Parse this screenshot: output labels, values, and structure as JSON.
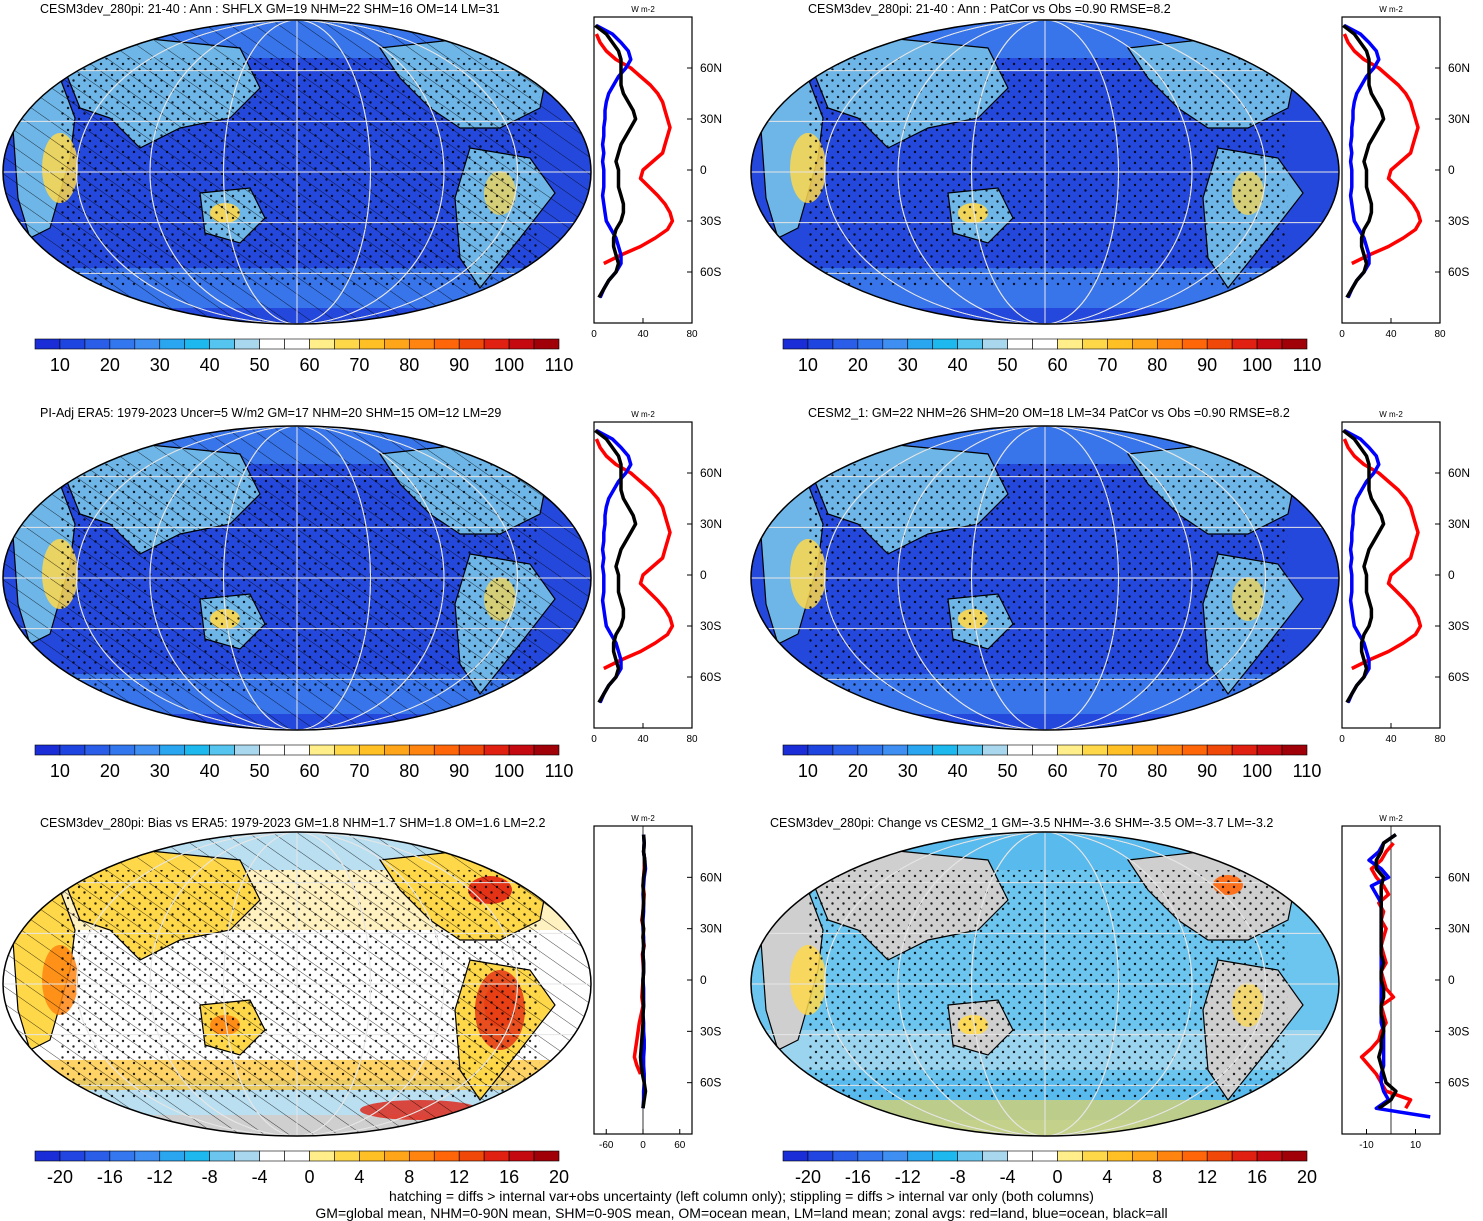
{
  "panels": [
    {
      "title": "CESM3dev_280pi: 21-40 : Ann : SHFLX GM=19 NHM=22 SHM=16 OM=14 LM=31",
      "map": {
        "field": "absolute",
        "hatching": true,
        "stippling": true
      },
      "colorbar": {
        "labels": [
          "10",
          "20",
          "30",
          "40",
          "50",
          "60",
          "70",
          "80",
          "90",
          "100",
          "110"
        ]
      },
      "zonal": {
        "unit": "W m-2",
        "xticks": [
          "0",
          "40",
          "80"
        ],
        "xmin": 0,
        "xmax": 80,
        "lat_ticks": [
          "60N",
          "30N",
          "0",
          "30S",
          "60S"
        ]
      }
    },
    {
      "title": "CESM3dev_280pi: 21-40 : Ann : PatCor vs Obs =0.90 RMSE=8.2",
      "map": {
        "field": "absolute",
        "hatching": false,
        "stippling": true
      },
      "colorbar": {
        "labels": [
          "10",
          "20",
          "30",
          "40",
          "50",
          "60",
          "70",
          "80",
          "90",
          "100",
          "110"
        ]
      },
      "zonal": {
        "unit": "W m-2",
        "xticks": [
          "0",
          "40",
          "80"
        ],
        "xmin": 0,
        "xmax": 80,
        "lat_ticks": [
          "60N",
          "30N",
          "0",
          "30S",
          "60S"
        ]
      }
    },
    {
      "title": "PI-Adj ERA5: 1979-2023 Uncer=5 W/m2 GM=17 NHM=20 SHM=15 OM=12 LM=29",
      "map": {
        "field": "absolute",
        "hatching": true,
        "stippling": true
      },
      "colorbar": {
        "labels": [
          "10",
          "20",
          "30",
          "40",
          "50",
          "60",
          "70",
          "80",
          "90",
          "100",
          "110"
        ]
      },
      "zonal": {
        "unit": "W m-2",
        "xticks": [
          "0",
          "40",
          "80"
        ],
        "xmin": 0,
        "xmax": 80,
        "lat_ticks": [
          "60N",
          "30N",
          "0",
          "30S",
          "60S"
        ]
      }
    },
    {
      "title": "CESM2_1: GM=22 NHM=26 SHM=20 OM=18 LM=34 PatCor vs Obs =0.90 RMSE=8.2",
      "map": {
        "field": "absolute",
        "hatching": false,
        "stippling": true
      },
      "colorbar": {
        "labels": [
          "10",
          "20",
          "30",
          "40",
          "50",
          "60",
          "70",
          "80",
          "90",
          "100",
          "110"
        ]
      },
      "zonal": {
        "unit": "W m-2",
        "xticks": [
          "0",
          "40",
          "80"
        ],
        "xmin": 0,
        "xmax": 80,
        "lat_ticks": [
          "60N",
          "30N",
          "0",
          "30S",
          "60S"
        ]
      }
    },
    {
      "title": "CESM3dev_280pi: Bias vs ERA5: 1979-2023 GM=1.8 NHM=1.7 SHM=1.8 OM=1.6 LM=2.2",
      "map": {
        "field": "bias",
        "hatching": true,
        "stippling": true
      },
      "colorbar": {
        "labels": [
          "-20",
          "-16",
          "-12",
          "-8",
          "-4",
          "0",
          "4",
          "8",
          "12",
          "16",
          "20"
        ]
      },
      "zonal": {
        "unit": "W m-2",
        "xticks": [
          "-60",
          "0",
          "60"
        ],
        "xmin": -80,
        "xmax": 80,
        "lat_ticks": [
          "60N",
          "30N",
          "0",
          "30S",
          "60S"
        ]
      }
    },
    {
      "title": "CESM3dev_280pi: Change vs CESM2_1 GM=-3.5 NHM=-3.6 SHM=-3.5 OM=-3.7 LM=-3.2",
      "map": {
        "field": "change",
        "hatching": false,
        "stippling": true
      },
      "colorbar": {
        "labels": [
          "-20",
          "-16",
          "-12",
          "-8",
          "-4",
          "0",
          "4",
          "8",
          "12",
          "16",
          "20"
        ]
      },
      "zonal": {
        "unit": "W m-2",
        "xticks": [
          "-10",
          "10"
        ],
        "xmin": -20,
        "xmax": 20,
        "lat_ticks": [
          "60N",
          "30N",
          "0",
          "30S",
          "60S"
        ]
      }
    }
  ],
  "chart_data": {
    "type": "heatmap",
    "colors": {
      "seq": [
        "#1a2dd6",
        "#1f45e0",
        "#2a5ee8",
        "#3377ee",
        "#3f8ef2",
        "#2aa6f0",
        "#1cb8ee",
        "#55c4ee",
        "#a8d7ee",
        "#ffffff",
        "#ffffff",
        "#ffee8a",
        "#ffd84a",
        "#ffc025",
        "#ffa51a",
        "#ff8510",
        "#ff660a",
        "#f04808",
        "#e02010",
        "#c40a10",
        "#a00008"
      ],
      "div": [
        "#1a2dd6",
        "#2244e0",
        "#2a5ee8",
        "#3577ee",
        "#3f8ef2",
        "#2aa6f0",
        "#1cb8ee",
        "#6cc5ee",
        "#a8d7ee",
        "#ffffff",
        "#ffffff",
        "#ffee8a",
        "#ffd84a",
        "#ffc025",
        "#ffa51a",
        "#ff8510",
        "#ff660a",
        "#f04808",
        "#e02010",
        "#c40a10",
        "#a00008"
      ],
      "land_line": "#ff0000",
      "ocean_line": "#0000ff",
      "all_line": "#000000"
    },
    "zonal_series": {
      "lat": [
        85,
        80,
        75,
        70,
        65,
        60,
        55,
        50,
        45,
        40,
        35,
        30,
        25,
        20,
        15,
        10,
        5,
        0,
        -5,
        -10,
        -15,
        -20,
        -25,
        -30,
        -35,
        -40,
        -45,
        -50,
        -55,
        -60,
        -65,
        -70,
        -75,
        -80
      ],
      "absolute": {
        "land": [
          null,
          2,
          5,
          10,
          18,
          30,
          38,
          46,
          52,
          56,
          58,
          60,
          62,
          60,
          58,
          56,
          48,
          40,
          38,
          45,
          52,
          58,
          62,
          64,
          60,
          50,
          38,
          22,
          8,
          null,
          null,
          null,
          2,
          null
        ],
        "ocean": [
          2,
          15,
          22,
          28,
          30,
          26,
          20,
          16,
          12,
          10,
          9,
          9,
          8,
          8,
          7,
          8,
          7,
          8,
          8,
          8,
          7,
          8,
          9,
          10,
          14,
          18,
          20,
          22,
          22,
          18,
          12,
          8,
          5,
          null
        ],
        "all": [
          1,
          10,
          15,
          20,
          22,
          22,
          22,
          22,
          24,
          28,
          32,
          34,
          30,
          26,
          22,
          20,
          18,
          20,
          20,
          20,
          22,
          24,
          24,
          22,
          18,
          16,
          16,
          18,
          20,
          18,
          12,
          8,
          4,
          null
        ]
      },
      "bias": {
        "land": [
          null,
          2,
          1,
          3,
          2,
          1,
          0,
          2,
          1,
          0,
          -2,
          1,
          0,
          2,
          -1,
          0,
          1,
          0,
          -1,
          -2,
          0,
          -3,
          -6,
          -8,
          -10,
          -12,
          -14,
          -10,
          -4,
          null,
          null,
          null,
          null,
          null
        ],
        "ocean": [
          1,
          2,
          1,
          3,
          4,
          2,
          1,
          0,
          1,
          1,
          0,
          0,
          1,
          1,
          0,
          1,
          1,
          0,
          1,
          1,
          1,
          0,
          1,
          1,
          2,
          2,
          1,
          1,
          2,
          2,
          1,
          1,
          0,
          null
        ],
        "all": [
          1,
          2,
          1,
          3,
          3,
          1,
          0,
          1,
          1,
          0,
          -1,
          1,
          0,
          1,
          0,
          1,
          1,
          0,
          0,
          0,
          1,
          0,
          0,
          -1,
          -2,
          -3,
          -4,
          -3,
          -1,
          2,
          4,
          2,
          0,
          null
        ]
      },
      "change": {
        "land": [
          null,
          1,
          -2,
          -4,
          -8,
          -6,
          -3,
          -1,
          -5,
          -3,
          -4,
          -2,
          -3,
          -4,
          -3,
          -2,
          -4,
          -3,
          -2,
          1,
          -4,
          -3,
          -2,
          -4,
          -5,
          -8,
          -12,
          -9,
          -6,
          -4,
          -2,
          8,
          6,
          null
        ],
        "ocean": [
          2,
          -3,
          -5,
          -9,
          -4,
          -1,
          -8,
          -6,
          -4,
          -4,
          -4,
          -4,
          -4,
          -4,
          -4,
          -4,
          -4,
          -4,
          -4,
          -4,
          -4,
          -4,
          -4,
          -3,
          -3,
          -3,
          -3,
          -3,
          -4,
          -4,
          -3,
          -1,
          -6,
          16
        ],
        "all": [
          2,
          -3,
          -4,
          -6,
          -6,
          -3,
          -4,
          -4,
          -4,
          -4,
          -4,
          -4,
          -4,
          -4,
          -4,
          -3,
          -4,
          -4,
          -3,
          -3,
          -4,
          -4,
          -3,
          -3,
          -4,
          -4,
          -5,
          -4,
          -3,
          -2,
          2,
          0,
          -5,
          null
        ]
      }
    }
  },
  "footer": {
    "line1": "hatching = diffs > internal var+obs uncertainty (left column only); stippling = diffs > internal var only (both columns)",
    "line2": "GM=global mean, NHM=0-90N mean, SHM=0-90S mean, OM=ocean mean, LM=land mean; zonal avgs: red=land, blue=ocean, black=all"
  }
}
